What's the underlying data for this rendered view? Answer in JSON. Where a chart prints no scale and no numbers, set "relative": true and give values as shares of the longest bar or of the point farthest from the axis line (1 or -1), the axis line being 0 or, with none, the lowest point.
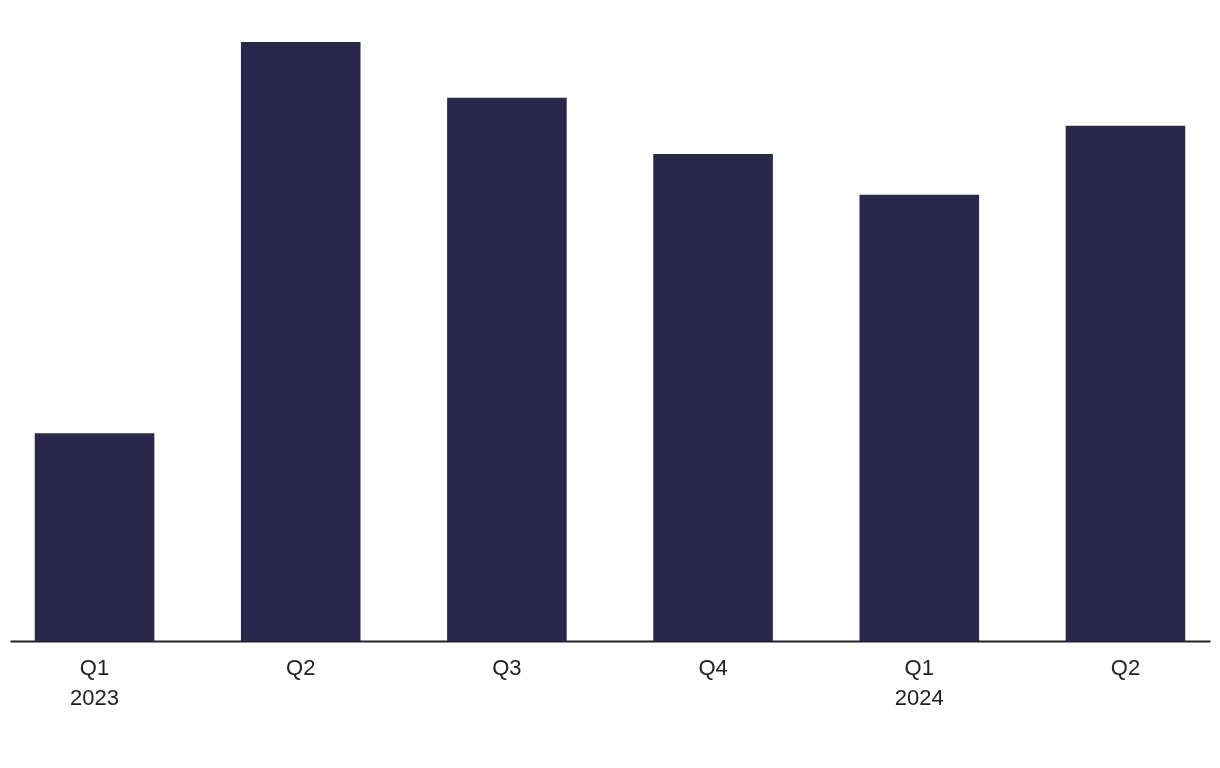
{
  "chart_data": {
    "type": "bar",
    "relative": true,
    "categories": [
      "Q1\n2023",
      "Q2",
      "Q3",
      "Q4",
      "Q1\n2024",
      "Q2"
    ],
    "values": [
      0.347,
      1,
      0.907,
      0.813,
      0.745,
      0.86
    ],
    "color": "#29284b"
  }
}
